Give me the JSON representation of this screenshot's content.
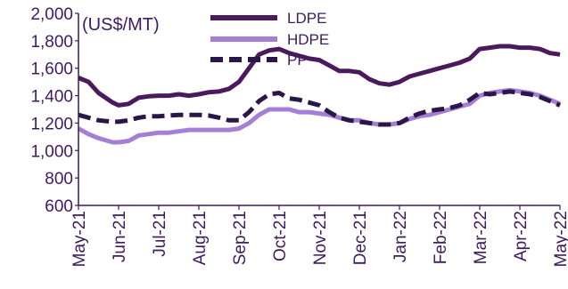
{
  "chart_data": {
    "type": "line",
    "unit_label": "(US$/MT)",
    "ylim": [
      600,
      2000
    ],
    "yticks": [
      "2,000",
      "1,800",
      "1,600",
      "1,400",
      "1,200",
      "1,000",
      "800",
      "600"
    ],
    "ytick_values": [
      2000,
      1800,
      1600,
      1400,
      1200,
      1000,
      800,
      600
    ],
    "categories": [
      "May-21",
      "Jun-21",
      "Jul-21",
      "Aug-21",
      "Sep-21",
      "Oct-21",
      "Nov-21",
      "Dec-21",
      "Jan-22",
      "Feb-22",
      "Mar-22",
      "Apr-22",
      "May-22"
    ],
    "legend_position": "top-right",
    "grid": false,
    "series": [
      {
        "name": "LDPE",
        "color": "#4b1a5c",
        "dash": "solid",
        "x": [
          0,
          0.25,
          0.5,
          0.85,
          1.0,
          1.25,
          1.5,
          1.75,
          2.0,
          2.25,
          2.5,
          2.75,
          3.0,
          3.25,
          3.5,
          3.75,
          4.0,
          4.25,
          4.5,
          4.75,
          5.0,
          5.25,
          5.5,
          5.75,
          6.0,
          6.25,
          6.5,
          6.75,
          7.0,
          7.25,
          7.5,
          7.75,
          8.0,
          8.25,
          8.5,
          8.75,
          9.0,
          9.25,
          9.5,
          9.75,
          10.0,
          10.25,
          10.5,
          10.75,
          11.0,
          11.25,
          11.5,
          11.75,
          12.0
        ],
        "values": [
          1530,
          1500,
          1420,
          1350,
          1330,
          1340,
          1385,
          1395,
          1400,
          1400,
          1410,
          1400,
          1410,
          1425,
          1430,
          1450,
          1500,
          1600,
          1700,
          1730,
          1740,
          1710,
          1690,
          1670,
          1660,
          1620,
          1580,
          1580,
          1570,
          1520,
          1490,
          1480,
          1500,
          1540,
          1560,
          1580,
          1600,
          1620,
          1640,
          1670,
          1740,
          1750,
          1760,
          1760,
          1750,
          1750,
          1740,
          1710,
          1700
        ]
      },
      {
        "name": "HDPE",
        "color": "#a57fd6",
        "dash": "solid",
        "x": [
          0,
          0.25,
          0.5,
          0.85,
          1.0,
          1.25,
          1.5,
          1.75,
          2.0,
          2.25,
          2.5,
          2.75,
          3.0,
          3.25,
          3.5,
          3.75,
          4.0,
          4.25,
          4.5,
          4.75,
          5.0,
          5.25,
          5.5,
          5.75,
          6.0,
          6.25,
          6.5,
          6.75,
          7.0,
          7.25,
          7.5,
          7.75,
          8.0,
          8.25,
          8.5,
          8.75,
          9.0,
          9.25,
          9.5,
          9.75,
          10.0,
          10.25,
          10.5,
          10.75,
          11.0,
          11.25,
          11.5,
          11.75,
          12.0
        ],
        "values": [
          1160,
          1120,
          1090,
          1060,
          1060,
          1070,
          1110,
          1120,
          1130,
          1130,
          1140,
          1150,
          1150,
          1150,
          1150,
          1150,
          1160,
          1200,
          1260,
          1300,
          1300,
          1300,
          1280,
          1280,
          1270,
          1260,
          1240,
          1220,
          1220,
          1200,
          1190,
          1190,
          1200,
          1230,
          1250,
          1260,
          1280,
          1300,
          1320,
          1340,
          1400,
          1420,
          1430,
          1440,
          1430,
          1420,
          1400,
          1370,
          1340
        ]
      },
      {
        "name": "PP",
        "color": "#2a1648",
        "dash": "dashed",
        "x": [
          0,
          0.25,
          0.5,
          0.85,
          1.0,
          1.25,
          1.5,
          1.75,
          2.0,
          2.25,
          2.5,
          2.75,
          3.0,
          3.25,
          3.5,
          3.75,
          4.0,
          4.25,
          4.5,
          4.75,
          5.0,
          5.25,
          5.5,
          5.75,
          6.0,
          6.25,
          6.5,
          6.75,
          7.0,
          7.25,
          7.5,
          7.75,
          8.0,
          8.25,
          8.5,
          8.75,
          9.0,
          9.25,
          9.5,
          9.75,
          10.0,
          10.25,
          10.5,
          10.75,
          11.0,
          11.25,
          11.5,
          11.75,
          12.0
        ],
        "values": [
          1260,
          1240,
          1220,
          1210,
          1210,
          1220,
          1240,
          1250,
          1250,
          1255,
          1260,
          1260,
          1260,
          1255,
          1240,
          1220,
          1220,
          1280,
          1360,
          1410,
          1420,
          1380,
          1370,
          1350,
          1330,
          1280,
          1240,
          1220,
          1210,
          1200,
          1190,
          1190,
          1200,
          1240,
          1270,
          1290,
          1300,
          1310,
          1330,
          1370,
          1420,
          1410,
          1420,
          1430,
          1420,
          1410,
          1390,
          1360,
          1330
        ]
      }
    ]
  }
}
